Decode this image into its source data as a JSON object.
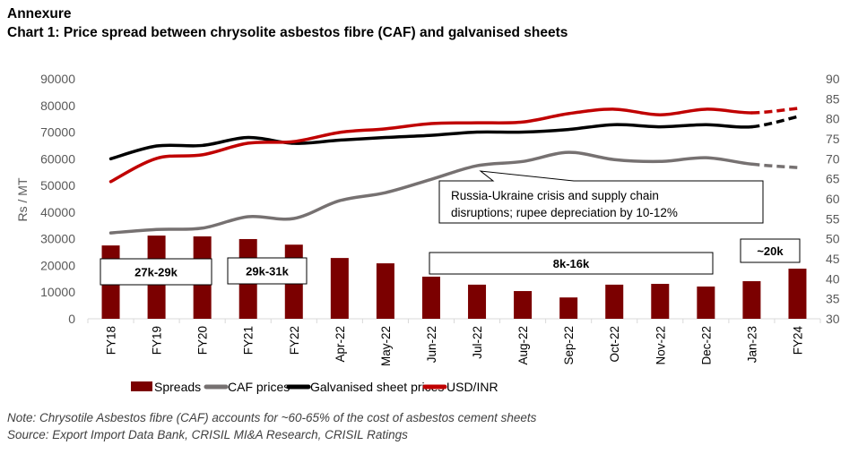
{
  "heading": "Annexure",
  "chart_data": {
    "type": "bar+line",
    "title": "Chart 1: Price spread between chrysolite asbestos fibre (CAF) and galvanised sheets",
    "ylabel": "Rs / MT",
    "ylim": [
      0,
      90000
    ],
    "yticks": [
      "0",
      "10000",
      "20000",
      "30000",
      "40000",
      "50000",
      "60000",
      "70000",
      "80000",
      "90000"
    ],
    "y2lim": [
      30,
      90
    ],
    "y2ticks": [
      "30",
      "35",
      "40",
      "45",
      "50",
      "55",
      "60",
      "65",
      "70",
      "75",
      "80",
      "85",
      "90"
    ],
    "categories": [
      "FY18",
      "FY19",
      "FY20",
      "FY21",
      "FY22",
      "Apr-22",
      "May-22",
      "Jun-22",
      "Jul-22",
      "Aug-22",
      "Sep-22",
      "Oct-22",
      "Nov-22",
      "Dec-22",
      "Jan-23",
      "FY24"
    ],
    "series": [
      {
        "name": "Spreads",
        "type": "bar",
        "axis": "left",
        "color": "#7B0000",
        "values": [
          27500,
          31200,
          30900,
          29900,
          27800,
          22800,
          20800,
          15800,
          12800,
          10400,
          8000,
          12800,
          13100,
          12100,
          14100,
          18800
        ]
      },
      {
        "name": "CAF prices",
        "type": "line",
        "axis": "left",
        "color": "#767171",
        "dashed_last": true,
        "values": [
          32200,
          33500,
          34000,
          38300,
          37600,
          44300,
          47300,
          52300,
          57400,
          59000,
          62400,
          59700,
          59000,
          60400,
          58000,
          56700
        ]
      },
      {
        "name": "Galvanised sheet prices",
        "type": "line",
        "axis": "left",
        "color": "#000000",
        "dashed_last": true,
        "values": [
          60000,
          64800,
          65000,
          68000,
          65800,
          67000,
          68000,
          68800,
          70000,
          70000,
          71000,
          72800,
          72000,
          72800,
          72000,
          75800
        ]
      },
      {
        "name": "USD/INR",
        "type": "line",
        "axis": "right",
        "color": "#C00000",
        "dashed_last": true,
        "values": [
          64.3,
          70.1,
          71.0,
          73.9,
          74.3,
          76.6,
          77.5,
          78.8,
          79.0,
          79.2,
          81.3,
          82.4,
          81.0,
          82.4,
          81.5,
          82.6
        ]
      }
    ],
    "annotations": [
      "27k-29k",
      "29k-31k",
      "8k-16k",
      "~20k"
    ],
    "callout": [
      "Russia-Ukraine crisis and supply chain",
      "disruptions; rupee depreciation by 10-12%"
    ],
    "legend_position": "bottom",
    "grid": false
  },
  "notes": [
    "Note: Chrysotile Asbestos fibre (CAF) accounts for ~60-65% of the cost of asbestos cement sheets",
    "Source: Export Import Data Bank, CRISIL MI&A Research, CRISIL Ratings"
  ]
}
